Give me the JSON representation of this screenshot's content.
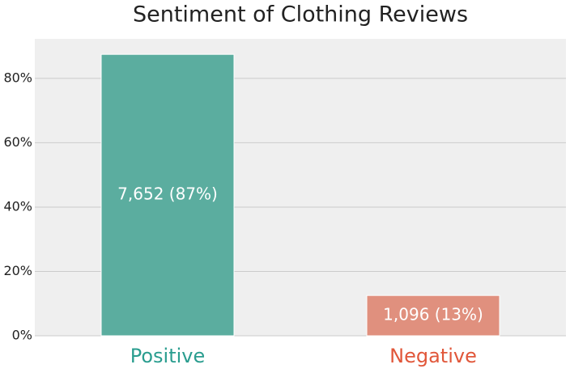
{
  "chart_data": {
    "type": "bar",
    "title": "Sentiment of Clothing Reviews",
    "categories": [
      "Positive",
      "Negative"
    ],
    "values": [
      87.47,
      12.53
    ],
    "value_labels": [
      "7,652 (87%)",
      "1,096 (13%)"
    ],
    "colors": [
      "#5bad9f",
      "#e0907e"
    ],
    "category_colors": [
      "#2a9d8f",
      "#e1573a"
    ],
    "ylim": [
      0,
      92.3
    ],
    "yticks": [
      {
        "value": 0,
        "label": "0%"
      },
      {
        "value": 20,
        "label": "20%"
      },
      {
        "value": 40,
        "label": "40%"
      },
      {
        "value": 60,
        "label": "60%"
      },
      {
        "value": 80,
        "label": "80%"
      }
    ],
    "grid": true
  }
}
